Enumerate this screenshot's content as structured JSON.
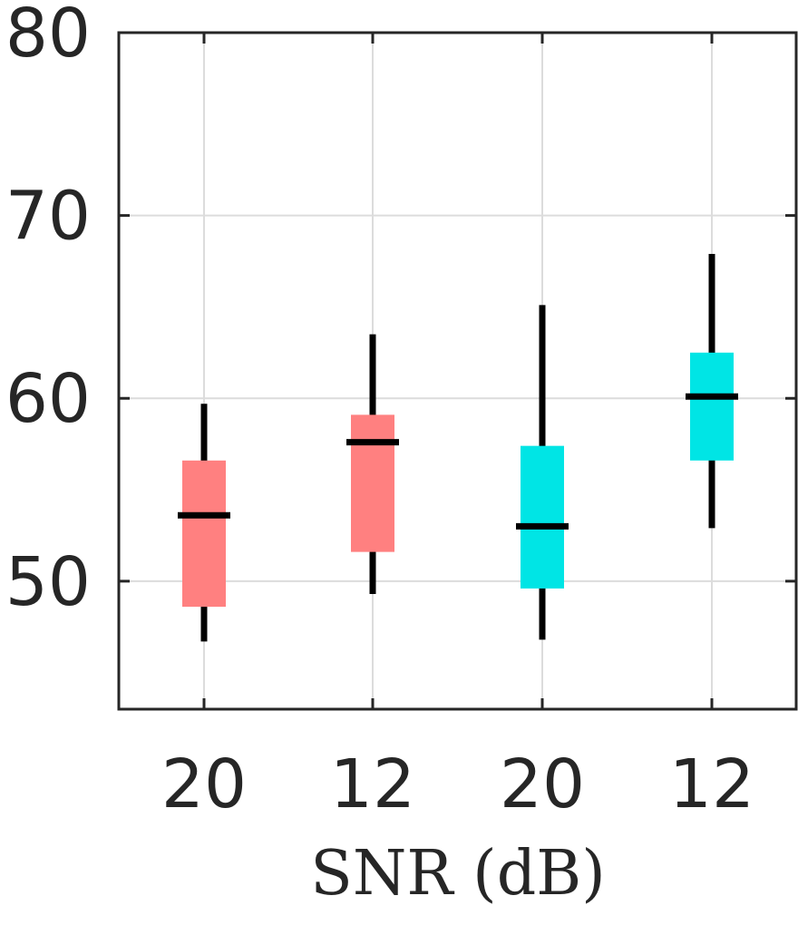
{
  "chart_data": {
    "type": "boxplot",
    "title": "",
    "xlabel": "SNR (dB)",
    "ylabel": "",
    "categories": [
      "20",
      "12",
      "20",
      "12"
    ],
    "ylim": [
      43,
      80
    ],
    "yticks": [
      50,
      60,
      70,
      80
    ],
    "grid": true,
    "boxes": [
      {
        "category": "20",
        "color": "#ff8080",
        "whisker_low": 46.7,
        "q1": 48.6,
        "median": 53.6,
        "q3": 56.6,
        "whisker_high": 59.7
      },
      {
        "category": "12",
        "color": "#ff8080",
        "whisker_low": 49.3,
        "q1": 51.6,
        "median": 57.6,
        "q3": 59.1,
        "whisker_high": 63.5
      },
      {
        "category": "20",
        "color": "#00e5e5",
        "whisker_low": 46.8,
        "q1": 49.6,
        "median": 53.0,
        "q3": 57.4,
        "whisker_high": 65.1
      },
      {
        "category": "12",
        "color": "#00e5e5",
        "whisker_low": 52.9,
        "q1": 56.6,
        "median": 60.1,
        "q3": 62.5,
        "whisker_high": 67.9
      }
    ]
  }
}
